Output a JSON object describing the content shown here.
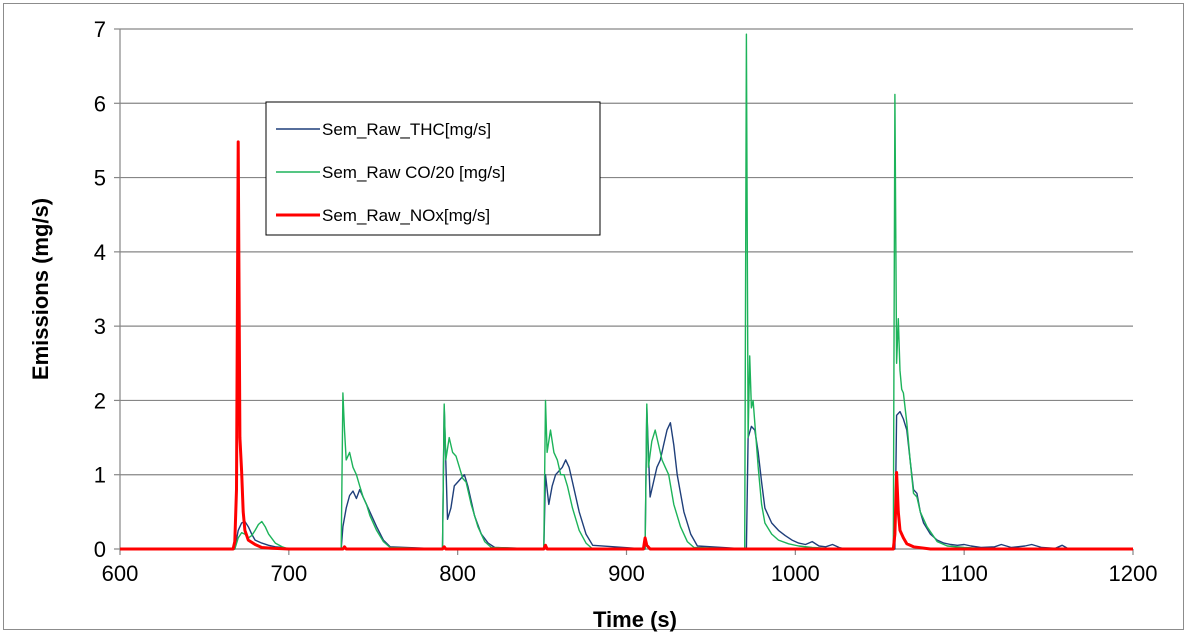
{
  "chart_data": {
    "type": "line",
    "xlabel": "Time (s)",
    "ylabel": "Emissions (mg/s)",
    "xlim": [
      600,
      1200
    ],
    "ylim": [
      0,
      7
    ],
    "x_ticks": [
      600,
      700,
      800,
      900,
      1000,
      1100,
      1200
    ],
    "y_ticks": [
      0,
      1,
      2,
      3,
      4,
      5,
      6,
      7
    ],
    "grid": "horizontal",
    "legend_position": "top-left",
    "series": [
      {
        "name": "Sem_Raw_THC[mg/s]",
        "color": "#1f3f7a",
        "x": [
          600,
          668,
          670,
          672,
          674,
          676,
          678,
          680,
          684,
          688,
          692,
          696,
          700,
          731,
          732,
          734,
          736,
          738,
          740,
          742,
          744,
          746,
          748,
          752,
          756,
          760,
          791,
          792,
          794,
          796,
          798,
          800,
          802,
          804,
          806,
          810,
          814,
          818,
          822,
          851,
          852,
          854,
          856,
          858,
          860,
          862,
          864,
          866,
          868,
          872,
          876,
          880,
          911,
          912,
          914,
          916,
          918,
          920,
          922,
          924,
          926,
          928,
          930,
          934,
          938,
          942,
          971,
          972,
          974,
          976,
          978,
          980,
          982,
          986,
          990,
          994,
          998,
          1002,
          1006,
          1010,
          1014,
          1018,
          1022,
          1026,
          1030,
          1059,
          1060,
          1062,
          1064,
          1066,
          1068,
          1070,
          1072,
          1074,
          1076,
          1080,
          1084,
          1088,
          1092,
          1096,
          1100,
          1104,
          1110,
          1118,
          1122,
          1128,
          1136,
          1140,
          1146,
          1154,
          1158,
          1162,
          1200
        ],
        "values": [
          0,
          0,
          0.25,
          0.35,
          0.37,
          0.3,
          0.2,
          0.12,
          0.08,
          0.05,
          0.03,
          0.02,
          0,
          0,
          0.3,
          0.55,
          0.72,
          0.78,
          0.68,
          0.8,
          0.7,
          0.6,
          0.5,
          0.3,
          0.12,
          0.03,
          0,
          1.92,
          0.4,
          0.55,
          0.85,
          0.9,
          0.95,
          1.0,
          0.85,
          0.45,
          0.2,
          0.08,
          0.02,
          0,
          1.0,
          0.6,
          0.85,
          1.0,
          1.05,
          1.1,
          1.2,
          1.1,
          0.9,
          0.5,
          0.2,
          0.05,
          0,
          1.9,
          0.7,
          0.9,
          1.1,
          1.2,
          1.4,
          1.6,
          1.7,
          1.4,
          1.0,
          0.5,
          0.2,
          0.04,
          0,
          1.5,
          1.65,
          1.6,
          1.3,
          0.9,
          0.55,
          0.35,
          0.25,
          0.18,
          0.12,
          0.08,
          0.06,
          0.1,
          0.04,
          0.03,
          0.06,
          0.02,
          0,
          0,
          1.8,
          1.85,
          1.75,
          1.6,
          1.2,
          0.8,
          0.75,
          0.5,
          0.35,
          0.2,
          0.12,
          0.08,
          0.06,
          0.05,
          0.06,
          0.04,
          0.02,
          0.03,
          0.06,
          0.02,
          0.04,
          0.06,
          0.02,
          0.01,
          0.05,
          0,
          0
        ]
      },
      {
        "name": "Sem_Raw CO/20 [mg/s]",
        "color": "#1db35a",
        "x": [
          600,
          668,
          670,
          672,
          674,
          676,
          678,
          680,
          682,
          684,
          686,
          688,
          692,
          696,
          700,
          731,
          732,
          733,
          734,
          736,
          738,
          740,
          742,
          744,
          746,
          748,
          752,
          756,
          760,
          791,
          792,
          793,
          795,
          797,
          799,
          801,
          803,
          805,
          808,
          812,
          816,
          820,
          851,
          852,
          853,
          855,
          857,
          859,
          861,
          863,
          865,
          868,
          872,
          876,
          880,
          911,
          912,
          913,
          915,
          917,
          919,
          921,
          923,
          925,
          928,
          932,
          936,
          940,
          970,
          971,
          972,
          973,
          974,
          975,
          976,
          978,
          980,
          982,
          986,
          990,
          996,
          1002,
          1010,
          1020,
          1030,
          1058,
          1059,
          1060,
          1061,
          1062,
          1063,
          1064,
          1066,
          1068,
          1070,
          1072,
          1074,
          1078,
          1084,
          1090,
          1100,
          1110,
          1120,
          1200
        ],
        "values": [
          0,
          0,
          0.15,
          0.22,
          0.2,
          0.15,
          0.18,
          0.25,
          0.33,
          0.37,
          0.3,
          0.2,
          0.08,
          0.03,
          0,
          0,
          2.1,
          1.6,
          1.2,
          1.3,
          1.1,
          1.0,
          0.85,
          0.7,
          0.6,
          0.45,
          0.25,
          0.1,
          0.02,
          0,
          1.95,
          1.2,
          1.5,
          1.3,
          1.25,
          1.1,
          0.95,
          0.9,
          0.6,
          0.3,
          0.1,
          0.02,
          0,
          2.0,
          1.3,
          1.6,
          1.3,
          1.2,
          1.0,
          1.0,
          0.85,
          0.55,
          0.25,
          0.08,
          0,
          0,
          1.95,
          1.1,
          1.45,
          1.6,
          1.4,
          1.2,
          1.1,
          1.0,
          0.6,
          0.3,
          0.1,
          0.02,
          0,
          6.93,
          1.5,
          2.6,
          1.9,
          2.0,
          1.7,
          1.1,
          0.6,
          0.35,
          0.2,
          0.12,
          0.07,
          0.04,
          0.02,
          0.01,
          0,
          0,
          6.12,
          2.5,
          3.1,
          2.4,
          2.15,
          2.1,
          1.7,
          1.2,
          0.75,
          0.7,
          0.5,
          0.3,
          0.1,
          0.04,
          0.02,
          0.01,
          0,
          0
        ]
      },
      {
        "name": "Sem_Raw_NOx[mg/s]",
        "color": "#ff0000",
        "x": [
          600,
          667,
          668,
          669,
          670,
          671,
          672,
          673,
          674,
          676,
          680,
          684,
          690,
          700,
          732,
          733,
          734,
          740,
          791,
          792,
          793,
          800,
          851,
          852,
          853,
          860,
          910,
          911,
          912,
          914,
          920,
          1058,
          1059,
          1060,
          1061,
          1062,
          1064,
          1066,
          1070,
          1080,
          1200
        ],
        "values": [
          0,
          0,
          0.1,
          0.8,
          5.48,
          1.5,
          1.05,
          0.5,
          0.25,
          0.12,
          0.06,
          0.02,
          0.01,
          0,
          0,
          0.03,
          0,
          0,
          0,
          0.03,
          0,
          0,
          0,
          0.05,
          0,
          0,
          0,
          0.15,
          0.05,
          0,
          0,
          0,
          0.2,
          1.03,
          0.5,
          0.25,
          0.15,
          0.07,
          0.03,
          0,
          0
        ]
      }
    ]
  }
}
